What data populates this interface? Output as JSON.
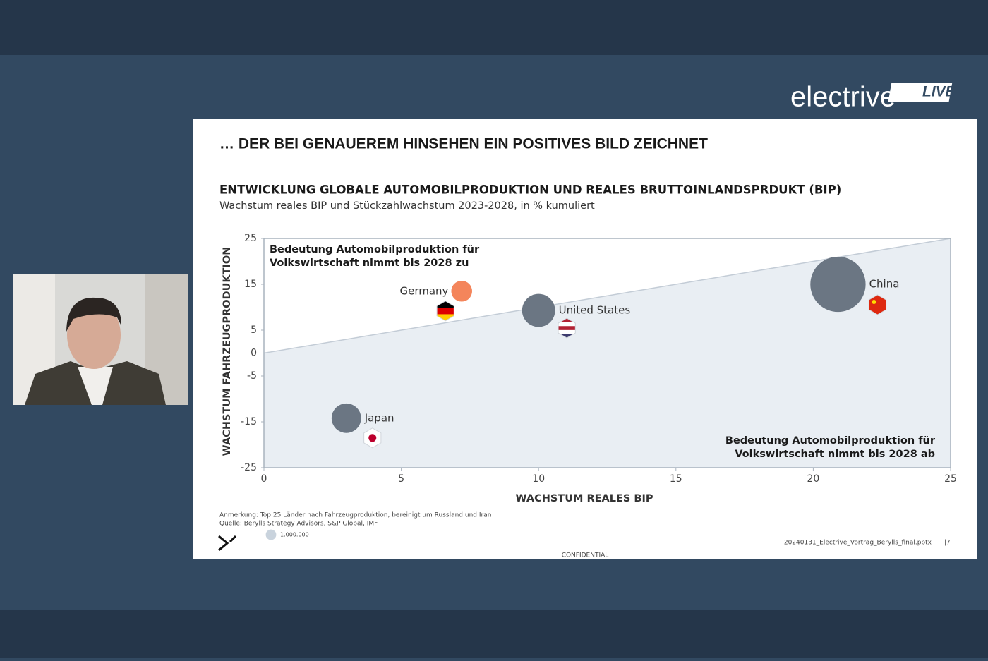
{
  "brand": {
    "name": "electrive",
    "badge": "LIVE"
  },
  "slide": {
    "heading": "… DER BEI GENAUEREM HINSEHEN EIN POSITIVES BILD ZEICHNET",
    "notes": [
      "Anmerkung: Top 25 Länder nach Fahrzeugproduktion, bereinigt um Russland und Iran",
      "Quelle: Berylls Strategy Advisors, S&P Global, IMF"
    ],
    "filename": "20240131_Electrive_Vortrag_Berylls_final.pptx",
    "page": "|7",
    "confidential": "CONFIDENTIAL"
  },
  "chart_data": {
    "type": "bubble",
    "title": "ENTWICKLUNG GLOBALE AUTOMOBILPRODUKTION UND REALES BRUTTOINLANDSPRDUKT (BIP)",
    "subtitle": "Wachstum reales BIP und Stückzahlwachstum 2023-2028, in % kumuliert",
    "x_label": "WACHSTUM REALES BIP",
    "y_label": "WACHSTUM FAHRZEUGPRODUKTION",
    "xlim": [
      0,
      25
    ],
    "ylim": [
      -25,
      25
    ],
    "xticks": [
      0,
      5,
      10,
      15,
      20,
      25
    ],
    "yticks": [
      -25,
      -15,
      -5,
      0,
      5,
      15,
      25
    ],
    "annotations": [
      [
        "Bedeutung Automobilproduktion für",
        "Volkswirtschaft nimmt bis 2028 zu"
      ],
      [
        "Bedeutung Automobilproduktion für",
        "Volkswirtschaft nimmt bis 2028 ab"
      ]
    ],
    "size_legend": {
      "value": 1000000,
      "label": "1.000.000"
    },
    "series": [
      {
        "name": "Germany",
        "color": "#f4855b",
        "x": [
          7.2
        ],
        "values": [
          13.5
        ],
        "sizes": [
          4000000
        ]
      },
      {
        "name": "United States",
        "color": "#6b7683",
        "x": [
          10.0
        ],
        "values": [
          9.3
        ],
        "sizes": [
          10000000
        ]
      },
      {
        "name": "China",
        "color": "#6b7683",
        "x": [
          20.9
        ],
        "values": [
          15
        ],
        "sizes": [
          28000000
        ]
      },
      {
        "name": "Japan",
        "color": "#6b7683",
        "x": [
          3.0
        ],
        "values": [
          -14.2
        ],
        "sizes": [
          8000000
        ]
      }
    ]
  }
}
